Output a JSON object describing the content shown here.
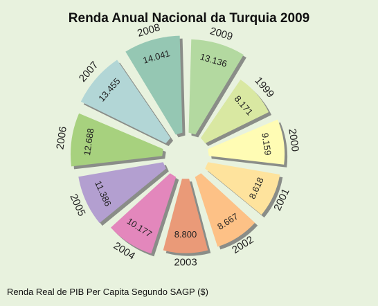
{
  "chart_data": {
    "type": "pie",
    "title": "Renda Anual Nacional da Turquia 2009",
    "caption": "Renda Real de PIB Per Capita Segundo SAGP ($)",
    "legend": "none",
    "slices": [
      {
        "year": "2009",
        "value": 13136,
        "label": "13.136",
        "color": "#b3d9a0"
      },
      {
        "year": "1999",
        "value": 8171,
        "label": "8.171",
        "color": "#d9e8a2"
      },
      {
        "year": "2000",
        "value": 9159,
        "label": "9.159",
        "color": "#fffcb4"
      },
      {
        "year": "2001",
        "value": 8618,
        "label": "8.618",
        "color": "#fee39d"
      },
      {
        "year": "2002",
        "value": 8667,
        "label": "8.667",
        "color": "#fdc186"
      },
      {
        "year": "2003",
        "value": 8800,
        "label": "8.800",
        "color": "#ea9a78"
      },
      {
        "year": "2004",
        "value": 10177,
        "label": "10.177",
        "color": "#e387bc"
      },
      {
        "year": "2005",
        "value": 11386,
        "label": "11.386",
        "color": "#b39fd0"
      },
      {
        "year": "2006",
        "value": 12688,
        "label": "12.688",
        "color": "#a7d17e"
      },
      {
        "year": "2007",
        "value": 13455,
        "label": "13.455",
        "color": "#b2d6d6"
      },
      {
        "year": "2008",
        "value": 14041,
        "label": "14.041",
        "color": "#95c7b3"
      }
    ]
  }
}
